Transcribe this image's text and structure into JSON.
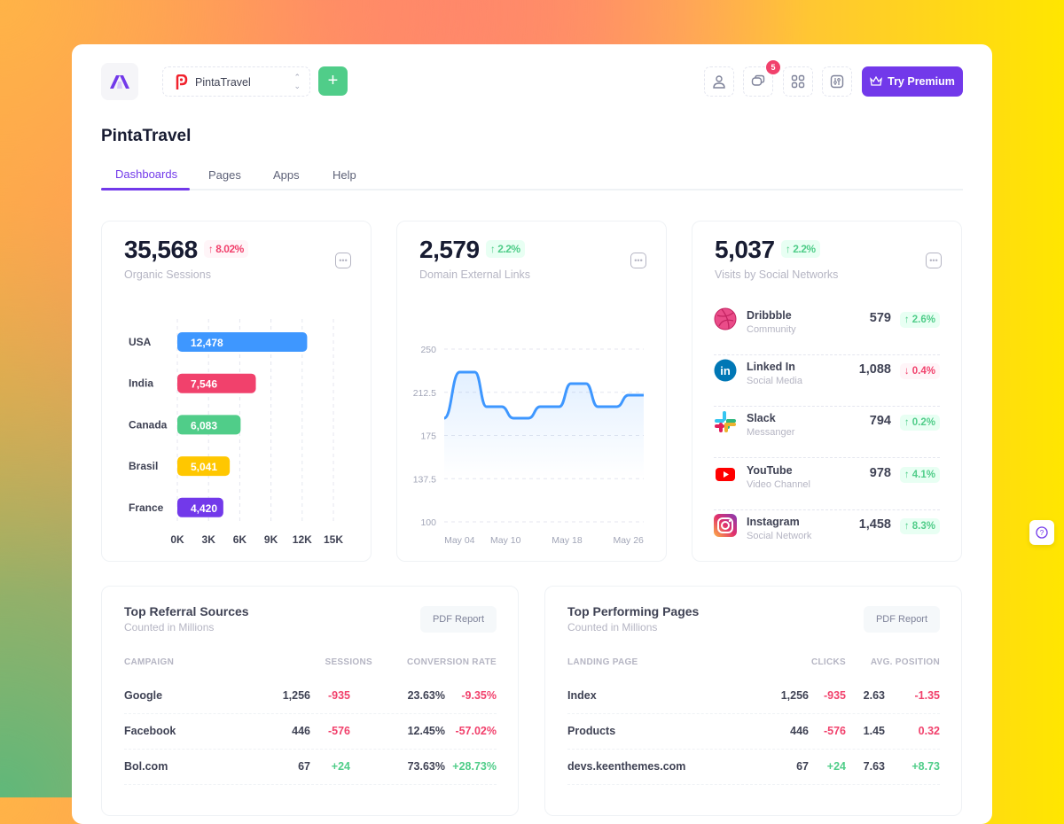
{
  "header": {
    "workspace": "PintaTravel",
    "notification_count": "5",
    "premium_label": "Try Premium"
  },
  "page_title": "PintaTravel",
  "tabs": [
    {
      "label": "Dashboards",
      "active": true
    },
    {
      "label": "Pages"
    },
    {
      "label": "Apps"
    },
    {
      "label": "Help"
    }
  ],
  "colors": {
    "accent": "#7239ea",
    "success": "#50cd89",
    "danger": "#f1416c",
    "line": "#3e97ff"
  },
  "stats": [
    {
      "value": "35,568",
      "change": "8.02%",
      "direction": "down",
      "label": "Organic Sessions"
    },
    {
      "value": "2,579",
      "change": "2.2%",
      "direction": "up",
      "label": "Domain External Links"
    },
    {
      "value": "5,037",
      "change": "2.2%",
      "direction": "up",
      "label": "Visits by Social Networks"
    }
  ],
  "chart_data": [
    {
      "type": "bar",
      "orientation": "horizontal",
      "categories": [
        "USA",
        "India",
        "Canada",
        "Brasil",
        "France"
      ],
      "values": [
        12478,
        7546,
        6083,
        5041,
        4420
      ],
      "value_labels": [
        "12,478",
        "7,546",
        "6,083",
        "5,041",
        "4,420"
      ],
      "colors": [
        "#3e97ff",
        "#f1416c",
        "#50cd89",
        "#ffc700",
        "#7239ea"
      ],
      "xlim": [
        0,
        15000
      ],
      "xticks": [
        "0K",
        "3K",
        "6K",
        "9K",
        "12K",
        "15K"
      ],
      "grid": true
    },
    {
      "type": "area",
      "xlabel": "",
      "ylabel": "",
      "ylim": [
        100,
        250
      ],
      "yticks": [
        "250",
        "212.5",
        "175",
        "137.5",
        "100"
      ],
      "xticks": [
        {
          "label": "May 04",
          "day": 4
        },
        {
          "label": "May 10",
          "day": 10
        },
        {
          "label": "May 18",
          "day": 18
        },
        {
          "label": "May 26",
          "day": 26
        }
      ],
      "points": [
        [
          2,
          190
        ],
        [
          4,
          230
        ],
        [
          6,
          230
        ],
        [
          7.5,
          200
        ],
        [
          9.5,
          200
        ],
        [
          11,
          190
        ],
        [
          13,
          190
        ],
        [
          14.5,
          200
        ],
        [
          17,
          200
        ],
        [
          18.5,
          220
        ],
        [
          20.5,
          220
        ],
        [
          22,
          200
        ],
        [
          24.5,
          200
        ],
        [
          26,
          210
        ],
        [
          28,
          210
        ]
      ],
      "grid": true
    }
  ],
  "social": [
    {
      "name": "Dribbble",
      "desc": "Community",
      "value": "579",
      "change": "2.6%",
      "direction": "up",
      "icon": "dribbble-icon"
    },
    {
      "name": "Linked In",
      "desc": "Social Media",
      "value": "1,088",
      "change": "0.4%",
      "direction": "down",
      "icon": "linkedin-icon"
    },
    {
      "name": "Slack",
      "desc": "Messanger",
      "value": "794",
      "change": "0.2%",
      "direction": "up",
      "icon": "slack-icon"
    },
    {
      "name": "YouTube",
      "desc": "Video Channel",
      "value": "978",
      "change": "4.1%",
      "direction": "up",
      "icon": "youtube-icon"
    },
    {
      "name": "Instagram",
      "desc": "Social Network",
      "value": "1,458",
      "change": "8.3%",
      "direction": "up",
      "icon": "instagram-icon"
    }
  ],
  "referral": {
    "title": "Top Referral Sources",
    "subtitle": "Counted in Millions",
    "button": "PDF Report",
    "columns": [
      "CAMPAIGN",
      "SESSIONS",
      "CONVERSION RATE"
    ],
    "rows": [
      [
        "Google",
        "1,256",
        "-935",
        "23.63%",
        "-9.35%"
      ],
      [
        "Facebook",
        "446",
        "-576",
        "12.45%",
        "-57.02%"
      ],
      [
        "Bol.com",
        "67",
        "+24",
        "73.63%",
        "+28.73%"
      ]
    ]
  },
  "pages": {
    "title": "Top Performing Pages",
    "subtitle": "Counted in Millions",
    "button": "PDF Report",
    "columns": [
      "LANDING PAGE",
      "CLICKS",
      "AVG. POSITION"
    ],
    "rows": [
      [
        "Index",
        "1,256",
        "-935",
        "2.63",
        "-1.35"
      ],
      [
        "Products",
        "446",
        "-576",
        "1.45",
        "0.32"
      ],
      [
        "devs.keenthemes.com",
        "67",
        "+24",
        "7.63",
        "+8.73"
      ]
    ]
  }
}
